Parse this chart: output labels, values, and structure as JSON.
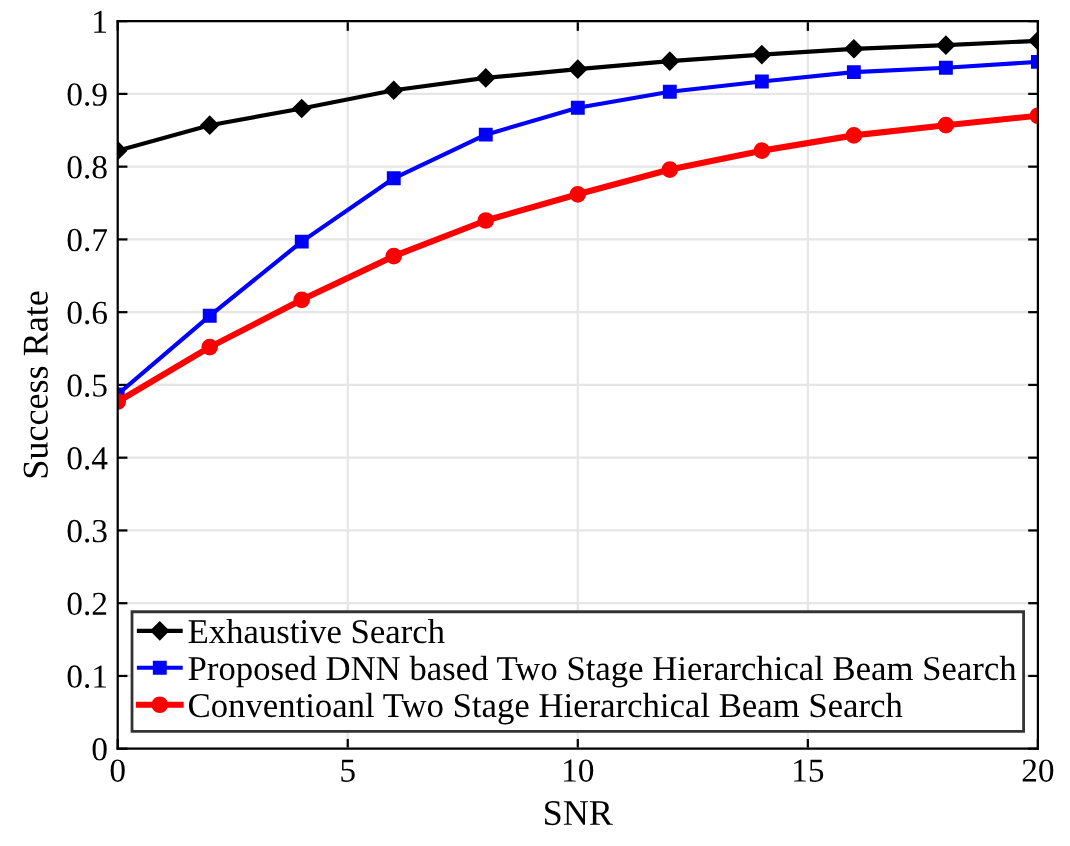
{
  "chart_data": {
    "type": "line",
    "xlabel": "SNR",
    "ylabel": "Success Rate",
    "x": [
      0,
      2,
      4,
      6,
      8,
      10,
      12,
      14,
      16,
      18,
      20
    ],
    "series": [
      {
        "name": "Exhaustive Search",
        "color": "#000000",
        "marker": "diamond",
        "values": [
          0.822,
          0.857,
          0.88,
          0.905,
          0.922,
          0.934,
          0.945,
          0.954,
          0.962,
          0.967,
          0.973
        ]
      },
      {
        "name": "Proposed DNN based Two Stage Hierarchical Beam Search",
        "color": "#0000ff",
        "marker": "square",
        "values": [
          0.487,
          0.595,
          0.697,
          0.784,
          0.844,
          0.881,
          0.903,
          0.917,
          0.93,
          0.936,
          0.944
        ]
      },
      {
        "name": "Conventioanl Two Stage Hierarchical Beam Search",
        "color": "#ff0000",
        "marker": "circle",
        "values": [
          0.477,
          0.552,
          0.617,
          0.677,
          0.726,
          0.762,
          0.796,
          0.822,
          0.843,
          0.857,
          0.87
        ]
      }
    ],
    "xlim": [
      0,
      20
    ],
    "xticks": [
      0,
      5,
      10,
      15,
      20
    ],
    "ylim": [
      0,
      1
    ],
    "yticks": [
      0,
      0.1,
      0.2,
      0.3,
      0.4,
      0.5,
      0.6,
      0.7,
      0.8,
      0.9,
      1
    ],
    "grid": true,
    "legend": "bottom",
    "line_style": "solid"
  }
}
